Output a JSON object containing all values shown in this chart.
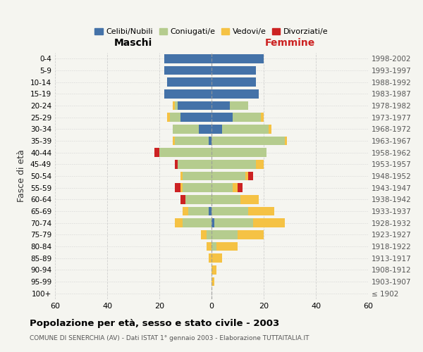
{
  "age_groups": [
    "100+",
    "95-99",
    "90-94",
    "85-89",
    "80-84",
    "75-79",
    "70-74",
    "65-69",
    "60-64",
    "55-59",
    "50-54",
    "45-49",
    "40-44",
    "35-39",
    "30-34",
    "25-29",
    "20-24",
    "15-19",
    "10-14",
    "5-9",
    "0-4"
  ],
  "birth_years": [
    "≤ 1902",
    "1903-1907",
    "1908-1912",
    "1913-1917",
    "1918-1922",
    "1923-1927",
    "1928-1932",
    "1933-1937",
    "1938-1942",
    "1943-1947",
    "1948-1952",
    "1953-1957",
    "1958-1962",
    "1963-1967",
    "1968-1972",
    "1973-1977",
    "1978-1982",
    "1983-1987",
    "1988-1992",
    "1993-1997",
    "1998-2002"
  ],
  "males": {
    "celibi": [
      0,
      0,
      0,
      0,
      0,
      0,
      0,
      1,
      0,
      0,
      0,
      0,
      0,
      1,
      5,
      12,
      13,
      18,
      17,
      18,
      18
    ],
    "coniugati": [
      0,
      0,
      0,
      0,
      0,
      2,
      11,
      8,
      10,
      11,
      11,
      13,
      20,
      13,
      10,
      4,
      1,
      0,
      0,
      0,
      0
    ],
    "vedovi": [
      0,
      0,
      0,
      1,
      2,
      2,
      3,
      2,
      0,
      1,
      1,
      0,
      0,
      1,
      0,
      1,
      1,
      0,
      0,
      0,
      0
    ],
    "divorziati": [
      0,
      0,
      0,
      0,
      0,
      0,
      0,
      0,
      2,
      2,
      0,
      1,
      2,
      0,
      0,
      0,
      0,
      0,
      0,
      0,
      0
    ]
  },
  "females": {
    "nubili": [
      0,
      0,
      0,
      0,
      0,
      0,
      1,
      0,
      0,
      0,
      0,
      0,
      0,
      0,
      4,
      8,
      7,
      18,
      17,
      17,
      20
    ],
    "coniugate": [
      0,
      0,
      0,
      0,
      2,
      10,
      15,
      14,
      11,
      8,
      13,
      17,
      21,
      28,
      18,
      11,
      7,
      0,
      0,
      0,
      0
    ],
    "vedove": [
      0,
      1,
      2,
      4,
      8,
      10,
      12,
      10,
      7,
      2,
      1,
      3,
      0,
      1,
      1,
      1,
      0,
      0,
      0,
      0,
      0
    ],
    "divorziate": [
      0,
      0,
      0,
      0,
      0,
      0,
      0,
      0,
      0,
      2,
      2,
      0,
      0,
      0,
      0,
      0,
      0,
      0,
      0,
      0,
      0
    ]
  },
  "colors": {
    "celibi_nubili": "#4472a8",
    "coniugati": "#b5cc8e",
    "vedovi": "#f5c244",
    "divorziati": "#cc2222"
  },
  "xlim": 60,
  "title": "Popolazione per età, sesso e stato civile - 2003",
  "subtitle": "COMUNE DI SENERCHIA (AV) - Dati ISTAT 1° gennaio 2003 - Elaborazione TUTTAITALIA.IT",
  "xlabel_left": "Maschi",
  "xlabel_right": "Femmine",
  "ylabel_left": "Fasce di età",
  "background_color": "#f5f5f0",
  "grid_color": "#cccccc"
}
